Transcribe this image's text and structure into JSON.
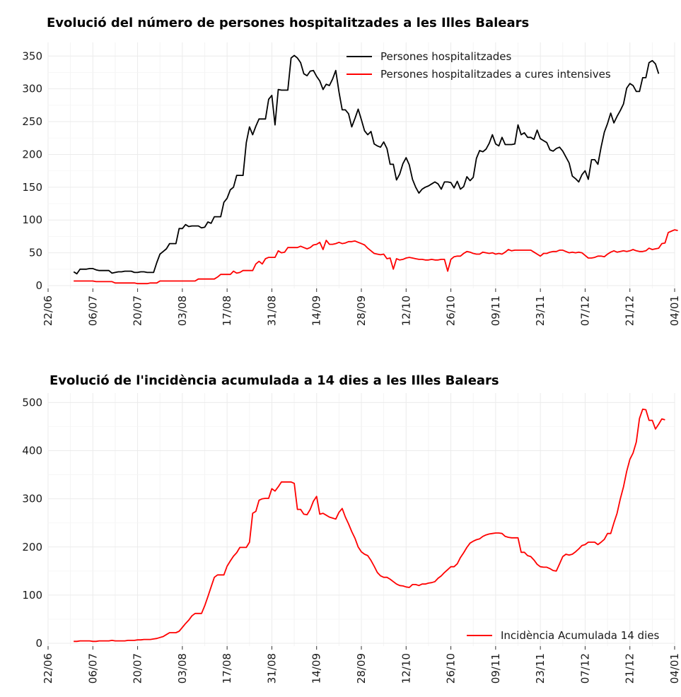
{
  "chart_data": [
    {
      "type": "line",
      "title": "Evolució del número de persones hospitalitzades a les Illes Balears",
      "xlabel": "",
      "ylabel": "",
      "x_start_date": "2020-06-30",
      "x_range": [
        "2020-06-22",
        "2021-01-04"
      ],
      "x_ticks": [
        "22/06",
        "06/07",
        "20/07",
        "03/08",
        "17/08",
        "31/08",
        "14/09",
        "28/09",
        "12/10",
        "26/10",
        "09/11",
        "23/11",
        "07/12",
        "21/12",
        "04/01"
      ],
      "y_ticks": [
        0,
        50,
        100,
        150,
        200,
        250,
        300,
        350
      ],
      "ylim": [
        0,
        360
      ],
      "grid": true,
      "legend_position": "top-right",
      "series": [
        {
          "name": "Persones hospitalitzades",
          "color": "#000000",
          "values": [
            21,
            18,
            25,
            25,
            25,
            26,
            26,
            24,
            23,
            23,
            23,
            23,
            19,
            20,
            21,
            21,
            22,
            22,
            22,
            20,
            20,
            21,
            21,
            20,
            20,
            20,
            35,
            48,
            52,
            56,
            64,
            64,
            64,
            87,
            87,
            93,
            90,
            91,
            91,
            91,
            88,
            89,
            97,
            95,
            105,
            105,
            105,
            127,
            133,
            146,
            150,
            168,
            168,
            168,
            218,
            242,
            230,
            243,
            254,
            254,
            254,
            284,
            290,
            245,
            299,
            298,
            298,
            298,
            347,
            351,
            347,
            340,
            323,
            320,
            327,
            328,
            319,
            312,
            299,
            307,
            305,
            315,
            328,
            295,
            268,
            268,
            262,
            242,
            255,
            269,
            253,
            236,
            230,
            235,
            216,
            213,
            211,
            219,
            209,
            185,
            185,
            161,
            170,
            186,
            195,
            184,
            162,
            150,
            141,
            147,
            150,
            152,
            155,
            158,
            155,
            147,
            158,
            158,
            157,
            149,
            159,
            147,
            151,
            166,
            160,
            165,
            194,
            206,
            204,
            208,
            217,
            230,
            216,
            213,
            226,
            215,
            215,
            215,
            216,
            245,
            230,
            233,
            226,
            226,
            223,
            237,
            224,
            221,
            218,
            207,
            205,
            209,
            211,
            205,
            196,
            187,
            167,
            163,
            158,
            169,
            175,
            162,
            192,
            192,
            185,
            211,
            234,
            247,
            263,
            248,
            258,
            267,
            277,
            301,
            308,
            305,
            296,
            296,
            317,
            317,
            340,
            343,
            338,
            323
          ]
        },
        {
          "name": "Persones hospitalitzades a cures intensives",
          "color": "#ff0000",
          "values": [
            7,
            7,
            7,
            7,
            7,
            7,
            7,
            6,
            6,
            6,
            6,
            6,
            6,
            4,
            4,
            4,
            4,
            4,
            4,
            4,
            3,
            3,
            3,
            3,
            4,
            4,
            4,
            7,
            7,
            7,
            7,
            7,
            7,
            7,
            7,
            7,
            7,
            7,
            7,
            10,
            10,
            10,
            10,
            10,
            10,
            13,
            17,
            17,
            17,
            17,
            22,
            19,
            20,
            23,
            23,
            23,
            23,
            33,
            37,
            33,
            41,
            43,
            43,
            43,
            53,
            50,
            51,
            58,
            58,
            58,
            58,
            60,
            58,
            56,
            58,
            62,
            63,
            66,
            55,
            69,
            63,
            63,
            64,
            66,
            64,
            65,
            67,
            67,
            68,
            66,
            64,
            62,
            57,
            53,
            49,
            48,
            47,
            48,
            41,
            42,
            25,
            41,
            39,
            40,
            42,
            43,
            42,
            41,
            40,
            40,
            39,
            39,
            40,
            39,
            39,
            40,
            40,
            22,
            40,
            44,
            45,
            45,
            49,
            52,
            51,
            49,
            48,
            48,
            51,
            50,
            49,
            50,
            48,
            49,
            48,
            51,
            55,
            53,
            54,
            54,
            54,
            54,
            54,
            54,
            51,
            48,
            45,
            49,
            49,
            51,
            52,
            52,
            54,
            54,
            52,
            50,
            51,
            50,
            51,
            50,
            46,
            42,
            42,
            43,
            45,
            45,
            44,
            48,
            51,
            53,
            51,
            52,
            53,
            52,
            53,
            55,
            53,
            52,
            52,
            53,
            57,
            55,
            56,
            57,
            64,
            65,
            81,
            83,
            85,
            84
          ]
        }
      ]
    },
    {
      "type": "line",
      "title": "Evolució de l'incidència acumulada a 14 dies a les Illes Balears",
      "xlabel": "",
      "ylabel": "",
      "x_start_date": "2020-06-30",
      "x_range": [
        "2020-06-22",
        "2021-01-04"
      ],
      "x_ticks": [
        "22/06",
        "06/07",
        "20/07",
        "03/08",
        "17/08",
        "31/08",
        "14/09",
        "28/09",
        "12/10",
        "26/10",
        "09/11",
        "23/11",
        "07/12",
        "21/12",
        "04/01"
      ],
      "y_ticks": [
        0,
        100,
        200,
        300,
        400,
        500
      ],
      "ylim": [
        0,
        505
      ],
      "grid": true,
      "legend_position": "bottom-right",
      "series": [
        {
          "name": "Incidència Acumulada 14 dies",
          "color": "#ff0000",
          "values": [
            4,
            4,
            5,
            5,
            5,
            5,
            4,
            4,
            5,
            5,
            5,
            5,
            6,
            5,
            5,
            5,
            5,
            6,
            6,
            6,
            7,
            7,
            8,
            8,
            8,
            9,
            10,
            12,
            14,
            18,
            22,
            22,
            22,
            25,
            33,
            41,
            48,
            57,
            62,
            62,
            62,
            78,
            97,
            117,
            137,
            142,
            142,
            142,
            160,
            171,
            181,
            188,
            199,
            199,
            199,
            210,
            270,
            274,
            297,
            300,
            301,
            301,
            321,
            316,
            325,
            335,
            335,
            335,
            335,
            332,
            278,
            278,
            268,
            267,
            278,
            295,
            305,
            268,
            270,
            266,
            262,
            260,
            258,
            272,
            280,
            262,
            248,
            232,
            218,
            200,
            190,
            185,
            182,
            172,
            160,
            147,
            140,
            137,
            137,
            133,
            128,
            123,
            120,
            119,
            117,
            116,
            122,
            122,
            120,
            123,
            123,
            125,
            126,
            128,
            135,
            140,
            147,
            153,
            159,
            159,
            165,
            178,
            188,
            199,
            208,
            212,
            215,
            217,
            222,
            225,
            227,
            228,
            229,
            229,
            228,
            222,
            220,
            219,
            219,
            219,
            189,
            189,
            182,
            180,
            173,
            164,
            159,
            158,
            158,
            155,
            151,
            150,
            165,
            180,
            185,
            183,
            185,
            190,
            196,
            203,
            205,
            210,
            210,
            210,
            205,
            210,
            216,
            228,
            228,
            250,
            270,
            300,
            325,
            357,
            382,
            395,
            418,
            467,
            486,
            485,
            463,
            463,
            445,
            455,
            466,
            464
          ]
        }
      ]
    }
  ]
}
